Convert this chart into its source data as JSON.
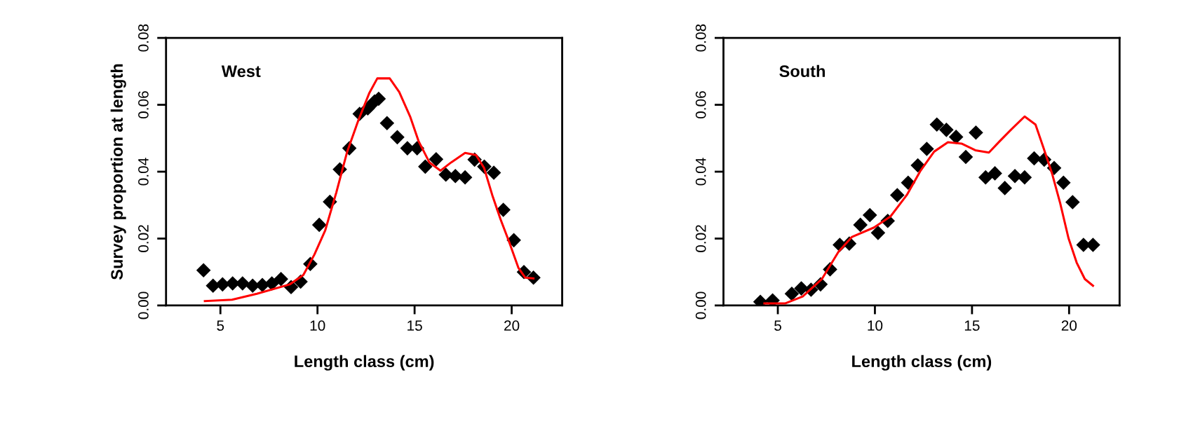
{
  "chart_data": [
    {
      "type": "scatter",
      "title": "West",
      "xlabel": "Length class (cm)",
      "ylabel": "Survey proportion at length",
      "xlim": [
        2.2,
        22.6
      ],
      "ylim": [
        0,
        0.08
      ],
      "xticks": [
        5,
        10,
        15,
        20
      ],
      "yticks": [
        {
          "value": 0,
          "label": "0.00"
        },
        {
          "value": 0.02,
          "label": "0.02"
        },
        {
          "value": 0.04,
          "label": "0.04"
        },
        {
          "value": 0.06,
          "label": "0.06"
        },
        {
          "value": 0.08,
          "label": "0.08"
        }
      ],
      "grid": false,
      "series": [
        {
          "marker": "diamond",
          "color": "#000000",
          "x": [
            4.13,
            4.62,
            5.11,
            5.63,
            6.14,
            6.66,
            7.16,
            7.65,
            8.12,
            8.64,
            9.13,
            9.63,
            10.09,
            10.64,
            11.15,
            11.64,
            12.17,
            12.59,
            12.94,
            13.15,
            13.58,
            14.11,
            14.63,
            15.13,
            15.55,
            16.11,
            16.61,
            17.1,
            17.6,
            18.09,
            18.59,
            19.08,
            19.57,
            20.11,
            20.63,
            21.12
          ],
          "values": [
            0.0105,
            0.0059,
            0.0063,
            0.0066,
            0.0066,
            0.0059,
            0.0061,
            0.0066,
            0.0079,
            0.0055,
            0.0071,
            0.0124,
            0.0241,
            0.031,
            0.0407,
            0.047,
            0.0573,
            0.0589,
            0.061,
            0.0618,
            0.0545,
            0.0503,
            0.047,
            0.047,
            0.0415,
            0.0437,
            0.0391,
            0.0387,
            0.0383,
            0.0436,
            0.0415,
            0.0397,
            0.0286,
            0.0195,
            0.01,
            0.0083
          ]
        },
        {
          "type": "line",
          "color": "#ff0000",
          "x": [
            4.2,
            5.6,
            6.88,
            8.57,
            9.27,
            9.84,
            10.4,
            10.97,
            11.53,
            12.1,
            12.66,
            13.08,
            13.72,
            14.21,
            14.77,
            15.2,
            15.76,
            16.33,
            16.89,
            17.6,
            18.16,
            18.58,
            19.0,
            19.43,
            19.85,
            20.35,
            20.7,
            21.12
          ],
          "values": [
            0.0013,
            0.0017,
            0.0035,
            0.0063,
            0.0091,
            0.0152,
            0.0225,
            0.0338,
            0.046,
            0.0553,
            0.0634,
            0.0679,
            0.0679,
            0.0638,
            0.0565,
            0.0492,
            0.0428,
            0.0403,
            0.0428,
            0.0456,
            0.045,
            0.0411,
            0.033,
            0.0257,
            0.0193,
            0.0112,
            0.0083,
            0.0081
          ]
        }
      ]
    },
    {
      "type": "scatter",
      "title": "South",
      "xlabel": "Length class (cm)",
      "xlim": [
        2.2,
        22.6
      ],
      "ylim": [
        0,
        0.08
      ],
      "xticks": [
        5,
        10,
        15,
        20
      ],
      "yticks": [
        {
          "value": 0,
          "label": "0.00"
        },
        {
          "value": 0.02,
          "label": "0.02"
        },
        {
          "value": 0.04,
          "label": "0.04"
        },
        {
          "value": 0.06,
          "label": "0.06"
        },
        {
          "value": 0.08,
          "label": "0.08"
        }
      ],
      "grid": false,
      "series": [
        {
          "marker": "diamond",
          "color": "#000000",
          "x": [
            4.1,
            4.73,
            5.72,
            6.21,
            6.71,
            7.2,
            7.69,
            8.19,
            8.68,
            9.25,
            9.74,
            10.16,
            10.66,
            11.15,
            11.71,
            12.21,
            12.67,
            13.19,
            13.68,
            14.18,
            14.68,
            15.2,
            15.7,
            16.18,
            16.69,
            17.21,
            17.71,
            18.2,
            18.72,
            19.23,
            19.71,
            20.18,
            20.74,
            21.23
          ],
          "values": [
            0.0011,
            0.0015,
            0.0035,
            0.0051,
            0.0047,
            0.0063,
            0.0108,
            0.0181,
            0.0185,
            0.0241,
            0.027,
            0.0217,
            0.0253,
            0.033,
            0.0367,
            0.0419,
            0.0468,
            0.0541,
            0.0525,
            0.0504,
            0.0444,
            0.0517,
            0.0383,
            0.0395,
            0.0351,
            0.0387,
            0.0383,
            0.044,
            0.0436,
            0.0411,
            0.0367,
            0.0309,
            0.0181,
            0.0181
          ]
        },
        {
          "type": "line",
          "color": "#ff0000",
          "x": [
            4.31,
            5.37,
            6.28,
            7.27,
            8.12,
            8.82,
            9.95,
            10.8,
            11.64,
            12.35,
            13.05,
            13.76,
            14.46,
            15.17,
            15.87,
            16.44,
            17.0,
            17.71,
            18.27,
            18.7,
            19.12,
            19.54,
            19.97,
            20.39,
            20.81,
            21.23
          ],
          "values": [
            0.0006,
            0.0006,
            0.0027,
            0.0079,
            0.016,
            0.0205,
            0.0233,
            0.0266,
            0.033,
            0.0403,
            0.046,
            0.0488,
            0.0484,
            0.0464,
            0.0457,
            0.0492,
            0.0525,
            0.0565,
            0.0541,
            0.0468,
            0.0395,
            0.0306,
            0.0201,
            0.0128,
            0.0079,
            0.0059
          ]
        }
      ]
    }
  ]
}
